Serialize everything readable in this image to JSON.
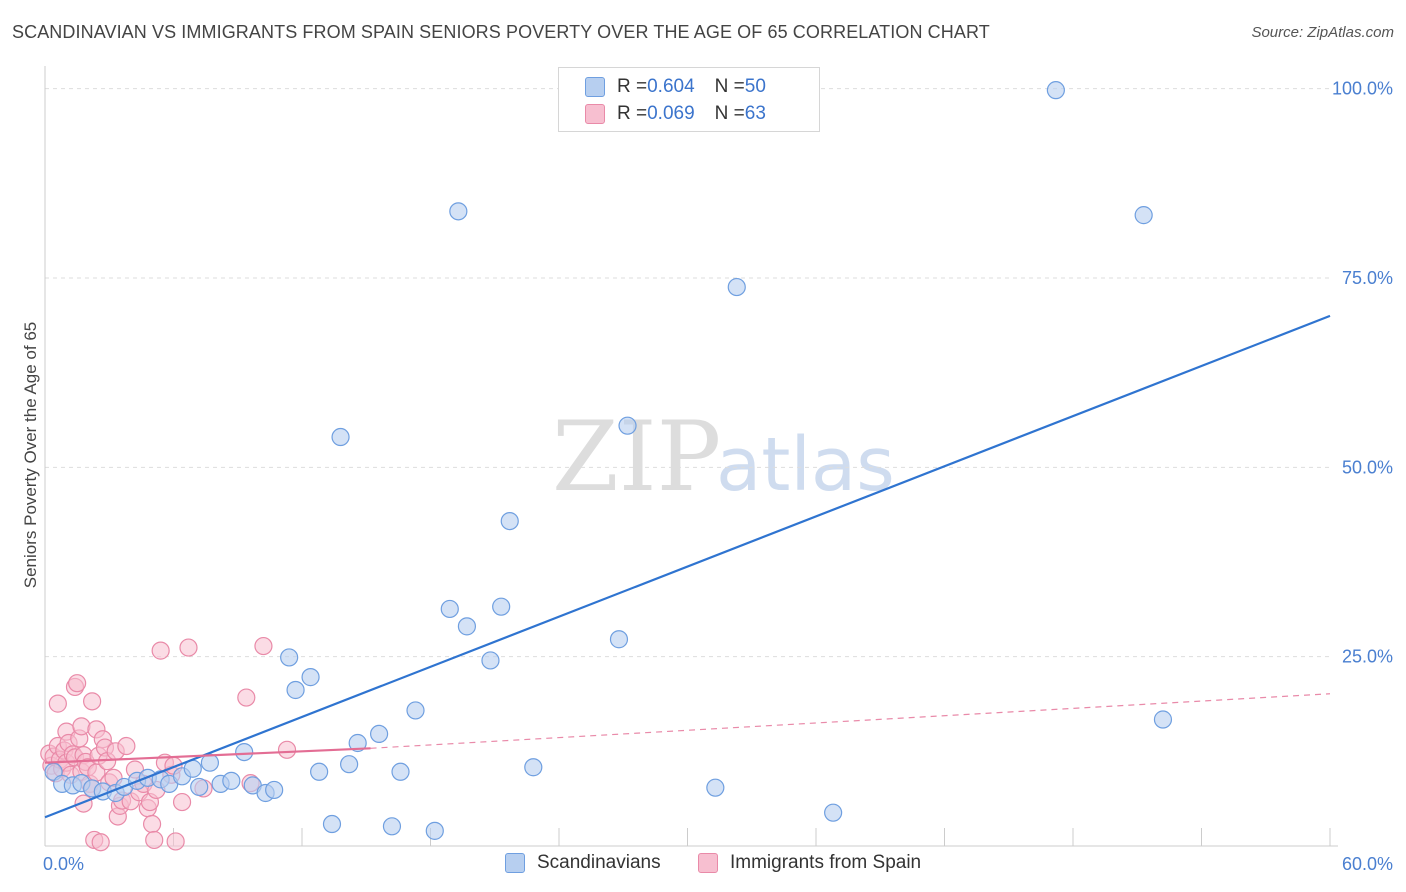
{
  "page": {
    "title": "SCANDINAVIAN VS IMMIGRANTS FROM SPAIN SENIORS POVERTY OVER THE AGE OF 65 CORRELATION CHART",
    "source": "Source: ZipAtlas.com",
    "watermark_zip": "ZIP",
    "watermark_atlas": "atlas"
  },
  "legend_top": {
    "rows": [
      {
        "r_label": "R = ",
        "r_value": "0.604",
        "n_label": "N = ",
        "n_value": "50"
      },
      {
        "r_label": "R = ",
        "r_value": "0.069",
        "n_label": "N = ",
        "n_value": "63"
      }
    ]
  },
  "legend_bottom": {
    "items": [
      {
        "label": "Scandinavians"
      },
      {
        "label": "Immigrants from Spain"
      }
    ]
  },
  "colors": {
    "blue_fill": "#b7cff0",
    "blue_stroke": "#6f9fe0",
    "blue_line": "#2f74d0",
    "pink_fill": "#f7bfd0",
    "pink_stroke": "#e98aa8",
    "pink_line": "#e36d94",
    "grid": "#dddddd",
    "tick_text": "#4a7fd0"
  },
  "chart_data": {
    "type": "scatter",
    "title": "SCANDINAVIAN VS IMMIGRANTS FROM SPAIN SENIORS POVERTY OVER THE AGE OF 65 CORRELATION CHART",
    "xlabel": "",
    "ylabel": "Seniors Poverty Over the Age of 65",
    "xlim": [
      0,
      60
    ],
    "ylim": [
      0,
      102
    ],
    "x_tick_labels": [
      {
        "value": 0,
        "label": "0.0%"
      },
      {
        "value": 60,
        "label": "60.0%"
      }
    ],
    "y_tick_labels": [
      {
        "value": 25,
        "label": "25.0%"
      },
      {
        "value": 50,
        "label": "50.0%"
      },
      {
        "value": 75,
        "label": "75.0%"
      },
      {
        "value": 100,
        "label": "100.0%"
      }
    ],
    "x_gridlines": [
      6,
      12,
      18,
      24,
      30,
      36,
      42,
      48,
      54,
      60
    ],
    "y_gridlines": [
      25,
      50,
      75,
      100
    ],
    "legend_position": "top-center",
    "series": [
      {
        "name": "Scandinavians",
        "R": 0.604,
        "N": 50,
        "trend": {
          "x0": 0,
          "y0": 3.8,
          "x1": 60,
          "y1": 70.0
        },
        "points": [
          [
            0.4,
            9.8
          ],
          [
            0.8,
            8.2
          ],
          [
            1.3,
            8.0
          ],
          [
            1.7,
            8.3
          ],
          [
            2.2,
            7.6
          ],
          [
            2.7,
            7.2
          ],
          [
            3.3,
            7.0
          ],
          [
            3.7,
            7.8
          ],
          [
            4.3,
            8.6
          ],
          [
            4.8,
            9.0
          ],
          [
            5.4,
            8.8
          ],
          [
            5.8,
            8.2
          ],
          [
            6.4,
            9.2
          ],
          [
            6.9,
            10.2
          ],
          [
            7.2,
            7.8
          ],
          [
            7.7,
            11.0
          ],
          [
            8.2,
            8.2
          ],
          [
            8.7,
            8.6
          ],
          [
            9.3,
            12.4
          ],
          [
            9.7,
            8.0
          ],
          [
            10.3,
            7.0
          ],
          [
            10.7,
            7.4
          ],
          [
            11.4,
            24.9
          ],
          [
            11.7,
            20.6
          ],
          [
            12.4,
            22.3
          ],
          [
            12.8,
            9.8
          ],
          [
            13.4,
            2.9
          ],
          [
            13.8,
            54.0
          ],
          [
            14.2,
            10.8
          ],
          [
            14.6,
            13.6
          ],
          [
            15.6,
            14.8
          ],
          [
            16.2,
            2.6
          ],
          [
            16.6,
            9.8
          ],
          [
            17.3,
            17.9
          ],
          [
            18.2,
            2.0
          ],
          [
            18.9,
            31.3
          ],
          [
            19.3,
            83.8
          ],
          [
            19.7,
            29.0
          ],
          [
            20.8,
            24.5
          ],
          [
            21.3,
            31.6
          ],
          [
            21.7,
            42.9
          ],
          [
            22.8,
            10.4
          ],
          [
            26.8,
            27.3
          ],
          [
            27.2,
            55.5
          ],
          [
            31.3,
            7.7
          ],
          [
            32.3,
            73.8
          ],
          [
            36.8,
            4.4
          ],
          [
            47.2,
            99.8
          ],
          [
            51.3,
            83.3
          ],
          [
            52.2,
            16.7
          ]
        ]
      },
      {
        "name": "Immigrants from Spain",
        "R": 0.069,
        "N": 63,
        "trend_solid": {
          "x0": 0,
          "y0": 11.0,
          "x1": 15.2,
          "y1": 12.9
        },
        "trend_dashed": {
          "x0": 15.2,
          "y0": 12.9,
          "x1": 60,
          "y1": 20.1
        },
        "points": [
          [
            0.2,
            12.2
          ],
          [
            0.3,
            10.6
          ],
          [
            0.4,
            11.8
          ],
          [
            0.5,
            9.6
          ],
          [
            0.6,
            13.2
          ],
          [
            0.6,
            18.8
          ],
          [
            0.7,
            11.4
          ],
          [
            0.8,
            10.2
          ],
          [
            0.9,
            12.6
          ],
          [
            1.0,
            15.1
          ],
          [
            1.0,
            11.0
          ],
          [
            1.1,
            13.6
          ],
          [
            1.2,
            9.4
          ],
          [
            1.3,
            12.1
          ],
          [
            1.4,
            21.0
          ],
          [
            1.4,
            11.7
          ],
          [
            1.5,
            21.5
          ],
          [
            1.6,
            14.2
          ],
          [
            1.7,
            9.8
          ],
          [
            1.7,
            15.8
          ],
          [
            1.8,
            5.6
          ],
          [
            1.8,
            12.0
          ],
          [
            1.9,
            11.1
          ],
          [
            2.0,
            10.4
          ],
          [
            2.1,
            8.2
          ],
          [
            2.2,
            7.6
          ],
          [
            2.2,
            19.1
          ],
          [
            2.3,
            0.8
          ],
          [
            2.4,
            9.7
          ],
          [
            2.4,
            15.4
          ],
          [
            2.5,
            11.9
          ],
          [
            2.6,
            0.5
          ],
          [
            2.7,
            14.1
          ],
          [
            2.8,
            13.0
          ],
          [
            2.9,
            11.2
          ],
          [
            3.0,
            8.4
          ],
          [
            3.2,
            9.0
          ],
          [
            3.3,
            12.5
          ],
          [
            3.4,
            3.9
          ],
          [
            3.5,
            5.3
          ],
          [
            3.6,
            6.0
          ],
          [
            3.8,
            13.2
          ],
          [
            4.0,
            5.9
          ],
          [
            4.2,
            10.1
          ],
          [
            4.4,
            7.1
          ],
          [
            4.6,
            8.2
          ],
          [
            4.8,
            5.0
          ],
          [
            4.9,
            5.8
          ],
          [
            5.0,
            2.9
          ],
          [
            5.1,
            0.8
          ],
          [
            5.2,
            7.4
          ],
          [
            5.4,
            25.8
          ],
          [
            5.6,
            11.0
          ],
          [
            5.9,
            9.4
          ],
          [
            6.0,
            10.6
          ],
          [
            6.1,
            0.6
          ],
          [
            6.4,
            5.8
          ],
          [
            6.7,
            26.2
          ],
          [
            7.4,
            7.6
          ],
          [
            9.4,
            19.6
          ],
          [
            9.6,
            8.3
          ],
          [
            10.2,
            26.4
          ],
          [
            11.3,
            12.7
          ]
        ]
      }
    ]
  }
}
